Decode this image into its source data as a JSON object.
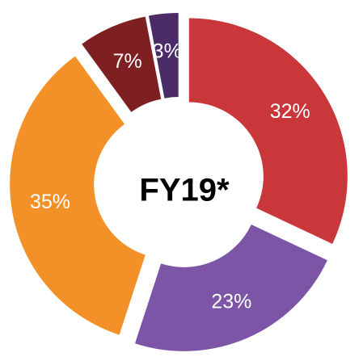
{
  "chart_data": {
    "type": "donut",
    "title": "FY19*",
    "categories": [
      null,
      null,
      null,
      null,
      null
    ],
    "values": [
      32,
      23,
      35,
      7,
      3
    ],
    "value_labels": [
      "32%",
      "23%",
      "35%",
      "7%",
      "3%"
    ],
    "colors": [
      "#c9373b",
      "#7c55a6",
      "#f39028",
      "#7e1f22",
      "#4b2c68"
    ]
  }
}
